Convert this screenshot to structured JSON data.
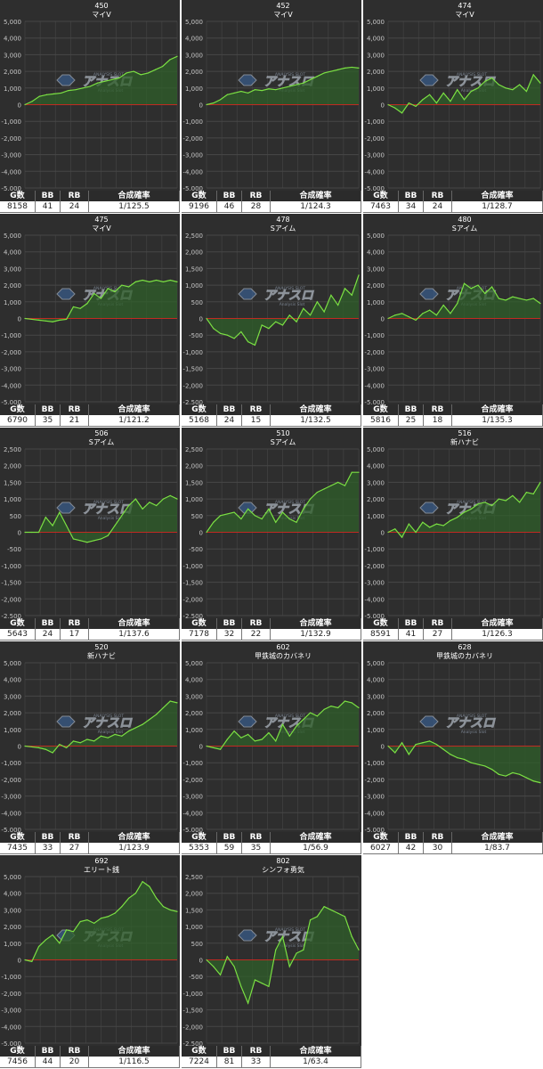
{
  "stat_headers": {
    "g": "G数",
    "bb": "BB",
    "rb": "RB",
    "rate": "合成確率"
  },
  "colors": {
    "line": "#7be043",
    "fill": "#2f5f2a",
    "zero": "#c02a22",
    "bg": "#2e2e2e",
    "grid": "#474747"
  },
  "watermark": {
    "top": "ANALYSIS SLOT",
    "main": "アナスロ",
    "sub": "Analysis Slot"
  },
  "chart_data": [
    {
      "type": "area",
      "title": "450",
      "subtitle": "マイV",
      "ylim": [
        -5000,
        5000
      ],
      "yticks": [
        "5,000",
        "4,000",
        "3,000",
        "2,000",
        "1,000",
        "0",
        "-1,000",
        "-2,000",
        "-3,000",
        "-4,000",
        "-5,000"
      ],
      "values": [
        0,
        200,
        500,
        600,
        650,
        700,
        850,
        900,
        1000,
        1100,
        1300,
        1400,
        1500,
        1600,
        1900,
        2000,
        1800,
        1900,
        2100,
        2300,
        2700,
        2900
      ],
      "stats": {
        "g": "8158",
        "bb": "41",
        "rb": "24",
        "rate": "1/125.5"
      }
    },
    {
      "type": "area",
      "title": "452",
      "subtitle": "マイV",
      "ylim": [
        -5000,
        5000
      ],
      "yticks": [
        "5,000",
        "4,000",
        "3,000",
        "2,000",
        "1,000",
        "0",
        "-1,000",
        "-2,000",
        "-3,000",
        "-4,000",
        "-5,000"
      ],
      "values": [
        0,
        100,
        300,
        600,
        700,
        800,
        700,
        900,
        850,
        950,
        900,
        1000,
        1100,
        1200,
        1300,
        1500,
        1700,
        1900,
        2000,
        2100,
        2200,
        2250,
        2200
      ],
      "stats": {
        "g": "9196",
        "bb": "46",
        "rb": "28",
        "rate": "1/124.3"
      }
    },
    {
      "type": "area",
      "title": "474",
      "subtitle": "マイV",
      "ylim": [
        -5000,
        5000
      ],
      "yticks": [
        "5,000",
        "4,000",
        "3,000",
        "2,000",
        "1,000",
        "0",
        "-1,000",
        "-2,000",
        "-3,000",
        "-4,000",
        "-5,000"
      ],
      "values": [
        0,
        -200,
        -500,
        100,
        -100,
        300,
        600,
        100,
        700,
        200,
        900,
        300,
        800,
        1000,
        1400,
        1600,
        1200,
        1000,
        900,
        1200,
        800,
        1800,
        1300
      ],
      "stats": {
        "g": "7463",
        "bb": "34",
        "rb": "24",
        "rate": "1/128.7"
      }
    },
    {
      "type": "area",
      "title": "475",
      "subtitle": "マイV",
      "ylim": [
        -5000,
        5000
      ],
      "yticks": [
        "5,000",
        "4,000",
        "3,000",
        "2,000",
        "1,000",
        "0",
        "-1,000",
        "-2,000",
        "-3,000",
        "-4,000",
        "-5,000"
      ],
      "values": [
        0,
        -50,
        -100,
        -150,
        -200,
        -100,
        -50,
        700,
        600,
        900,
        1500,
        1200,
        1800,
        1600,
        2000,
        1900,
        2200,
        2300,
        2200,
        2300,
        2200,
        2300,
        2200
      ],
      "stats": {
        "g": "6790",
        "bb": "35",
        "rb": "21",
        "rate": "1/121.2"
      }
    },
    {
      "type": "area",
      "title": "478",
      "subtitle": "Sアイム",
      "ylim": [
        -2500,
        2500
      ],
      "yticks": [
        "2,500",
        "2,000",
        "1,500",
        "1,000",
        "500",
        "0",
        "-500",
        "-1,000",
        "-1,500",
        "-2,000",
        "-2,500"
      ],
      "values": [
        0,
        -300,
        -450,
        -500,
        -600,
        -400,
        -700,
        -800,
        -200,
        -300,
        -100,
        -200,
        100,
        -100,
        300,
        100,
        500,
        200,
        700,
        400,
        900,
        700,
        1300
      ],
      "stats": {
        "g": "5168",
        "bb": "24",
        "rb": "15",
        "rate": "1/132.5"
      }
    },
    {
      "type": "area",
      "title": "480",
      "subtitle": "Sアイム",
      "ylim": [
        -5000,
        5000
      ],
      "yticks": [
        "5,000",
        "4,000",
        "3,000",
        "2,000",
        "1,000",
        "0",
        "-1,000",
        "-2,000",
        "-3,000",
        "-4,000",
        "-5,000"
      ],
      "values": [
        0,
        200,
        300,
        100,
        -100,
        300,
        500,
        200,
        800,
        300,
        900,
        2100,
        1800,
        2000,
        1500,
        1900,
        1200,
        1100,
        1300,
        1200,
        1100,
        1200,
        900
      ],
      "stats": {
        "g": "5816",
        "bb": "25",
        "rb": "18",
        "rate": "1/135.3"
      }
    },
    {
      "type": "area",
      "title": "506",
      "subtitle": "Sアイム",
      "ylim": [
        -2500,
        2500
      ],
      "yticks": [
        "2,500",
        "2,000",
        "1,500",
        "1,000",
        "500",
        "0",
        "-500",
        "-1,000",
        "-1,500",
        "-2,000",
        "-2,500"
      ],
      "values": [
        0,
        0,
        0,
        450,
        200,
        600,
        200,
        -200,
        -250,
        -300,
        -250,
        -200,
        -100,
        200,
        500,
        800,
        1000,
        700,
        900,
        800,
        1000,
        1100,
        1000
      ],
      "stats": {
        "g": "5643",
        "bb": "24",
        "rb": "17",
        "rate": "1/137.6"
      }
    },
    {
      "type": "area",
      "title": "510",
      "subtitle": "Sアイム",
      "ylim": [
        -2500,
        2500
      ],
      "yticks": [
        "2,500",
        "2,000",
        "1,500",
        "1,000",
        "500",
        "0",
        "-500",
        "-1,000",
        "-1,500",
        "-2,000",
        "-2,500"
      ],
      "values": [
        0,
        300,
        500,
        550,
        600,
        400,
        700,
        500,
        400,
        700,
        300,
        600,
        400,
        300,
        700,
        1000,
        1200,
        1300,
        1400,
        1500,
        1400,
        1800,
        1800
      ],
      "stats": {
        "g": "7178",
        "bb": "32",
        "rb": "22",
        "rate": "1/132.9"
      }
    },
    {
      "type": "area",
      "title": "516",
      "subtitle": "新ハナビ",
      "ylim": [
        -5000,
        5000
      ],
      "yticks": [
        "5,000",
        "4,000",
        "3,000",
        "2,000",
        "1,000",
        "0",
        "-1,000",
        "-2,000",
        "-3,000",
        "-4,000",
        "-5,000"
      ],
      "values": [
        0,
        200,
        -300,
        500,
        0,
        600,
        300,
        500,
        400,
        700,
        900,
        1200,
        1400,
        1700,
        1800,
        1600,
        2000,
        1900,
        2200,
        1800,
        2400,
        2300,
        3000
      ],
      "stats": {
        "g": "8591",
        "bb": "41",
        "rb": "27",
        "rate": "1/126.3"
      }
    },
    {
      "type": "area",
      "title": "520",
      "subtitle": "新ハナビ",
      "ylim": [
        -5000,
        5000
      ],
      "yticks": [
        "5,000",
        "4,000",
        "3,000",
        "2,000",
        "1,000",
        "0",
        "-1,000",
        "-2,000",
        "-3,000",
        "-4,000",
        "-5,000"
      ],
      "values": [
        0,
        -50,
        -100,
        -200,
        -400,
        100,
        -100,
        300,
        200,
        400,
        300,
        600,
        500,
        700,
        600,
        900,
        1100,
        1300,
        1600,
        1900,
        2300,
        2700,
        2600
      ],
      "stats": {
        "g": "7435",
        "bb": "33",
        "rb": "27",
        "rate": "1/123.9"
      }
    },
    {
      "type": "area",
      "title": "602",
      "subtitle": "甲鉄城のカバネリ",
      "ylim": [
        -5000,
        5000
      ],
      "yticks": [
        "5,000",
        "4,000",
        "3,000",
        "2,000",
        "1,000",
        "0",
        "-1,000",
        "-2,000",
        "-3,000",
        "-4,000",
        "-5,000"
      ],
      "values": [
        0,
        -100,
        -200,
        400,
        900,
        500,
        700,
        300,
        400,
        800,
        300,
        1300,
        600,
        1200,
        1600,
        2000,
        1800,
        2200,
        2400,
        2300,
        2700,
        2600,
        2300
      ],
      "stats": {
        "g": "5353",
        "bb": "59",
        "rb": "35",
        "rate": "1/56.9"
      }
    },
    {
      "type": "area",
      "title": "628",
      "subtitle": "甲鉄城のカバネリ",
      "ylim": [
        -5000,
        5000
      ],
      "yticks": [
        "5,000",
        "4,000",
        "3,000",
        "2,000",
        "1,000",
        "0",
        "-1,000",
        "-2,000",
        "-3,000",
        "-4,000",
        "-5,000"
      ],
      "values": [
        0,
        -400,
        200,
        -500,
        100,
        200,
        300,
        100,
        -200,
        -500,
        -700,
        -800,
        -1000,
        -1100,
        -1200,
        -1400,
        -1700,
        -1800,
        -1600,
        -1700,
        -1900,
        -2100,
        -2200
      ],
      "stats": {
        "g": "6027",
        "bb": "42",
        "rb": "30",
        "rate": "1/83.7"
      }
    },
    {
      "type": "area",
      "title": "692",
      "subtitle": "エリート銭",
      "ylim": [
        -5000,
        5000
      ],
      "yticks": [
        "5,000",
        "4,000",
        "3,000",
        "2,000",
        "1,000",
        "0",
        "-1,000",
        "-2,000",
        "-3,000",
        "-4,000",
        "-5,000"
      ],
      "values": [
        0,
        -100,
        800,
        1200,
        1500,
        1000,
        1800,
        1700,
        2300,
        2400,
        2200,
        2500,
        2600,
        2800,
        3200,
        3700,
        4000,
        4700,
        4400,
        3700,
        3200,
        3000,
        2900
      ],
      "stats": {
        "g": "7456",
        "bb": "44",
        "rb": "20",
        "rate": "1/116.5"
      }
    },
    {
      "type": "area",
      "title": "802",
      "subtitle": "シンフォ勇気",
      "ylim": [
        -2500,
        2500
      ],
      "yticks": [
        "2,500",
        "2,000",
        "1,500",
        "1,000",
        "500",
        "0",
        "-500",
        "-1,000",
        "-1,500",
        "-2,000",
        "-2,500"
      ],
      "values": [
        0,
        -200,
        -450,
        100,
        -200,
        -800,
        -1300,
        -600,
        -700,
        -800,
        300,
        700,
        -200,
        200,
        300,
        1200,
        1300,
        1600,
        1500,
        1400,
        1300,
        700,
        300
      ],
      "stats": {
        "g": "7224",
        "bb": "81",
        "rb": "33",
        "rate": "1/63.4"
      }
    }
  ]
}
